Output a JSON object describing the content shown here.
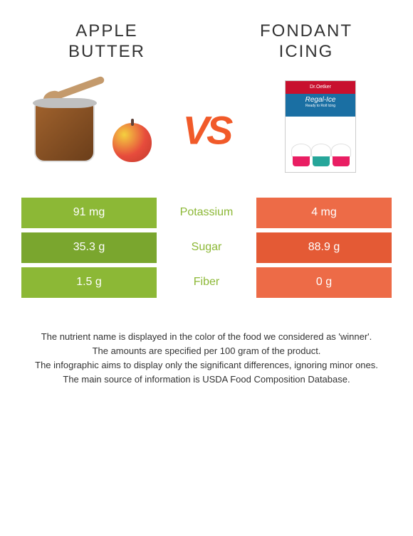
{
  "food_left": {
    "name": "Apple butter",
    "title_line1": "Apple",
    "title_line2": "butter",
    "accent_color": "#8cb836",
    "accent_dark": "#7aa62e"
  },
  "food_right": {
    "name": "Fondant icing",
    "title_line1": "Fondant",
    "title_line2": "icing",
    "accent_color": "#ed6b47",
    "accent_dark": "#e45a35"
  },
  "vs_label": "VS",
  "box_brand": "Dr.Oetker",
  "box_product": "Regal-Ice",
  "box_sub": "Ready to Roll Icing",
  "nutrients": [
    {
      "name": "Potassium",
      "left": "91 mg",
      "right": "4 mg",
      "winner": "left"
    },
    {
      "name": "Sugar",
      "left": "35.3 g",
      "right": "88.9 g",
      "winner": "left"
    },
    {
      "name": "Fiber",
      "left": "1.5 g",
      "right": "0 g",
      "winner": "left"
    }
  ],
  "footer": [
    "The nutrient name is displayed in the color of the food we considered as 'winner'.",
    "The amounts are specified per 100 gram of the product.",
    "The infographic aims to display only the significant differences, ignoring minor ones.",
    "The main source of information is USDA Food Composition Database."
  ],
  "colors": {
    "vs": "#f15a29",
    "text": "#333333"
  }
}
